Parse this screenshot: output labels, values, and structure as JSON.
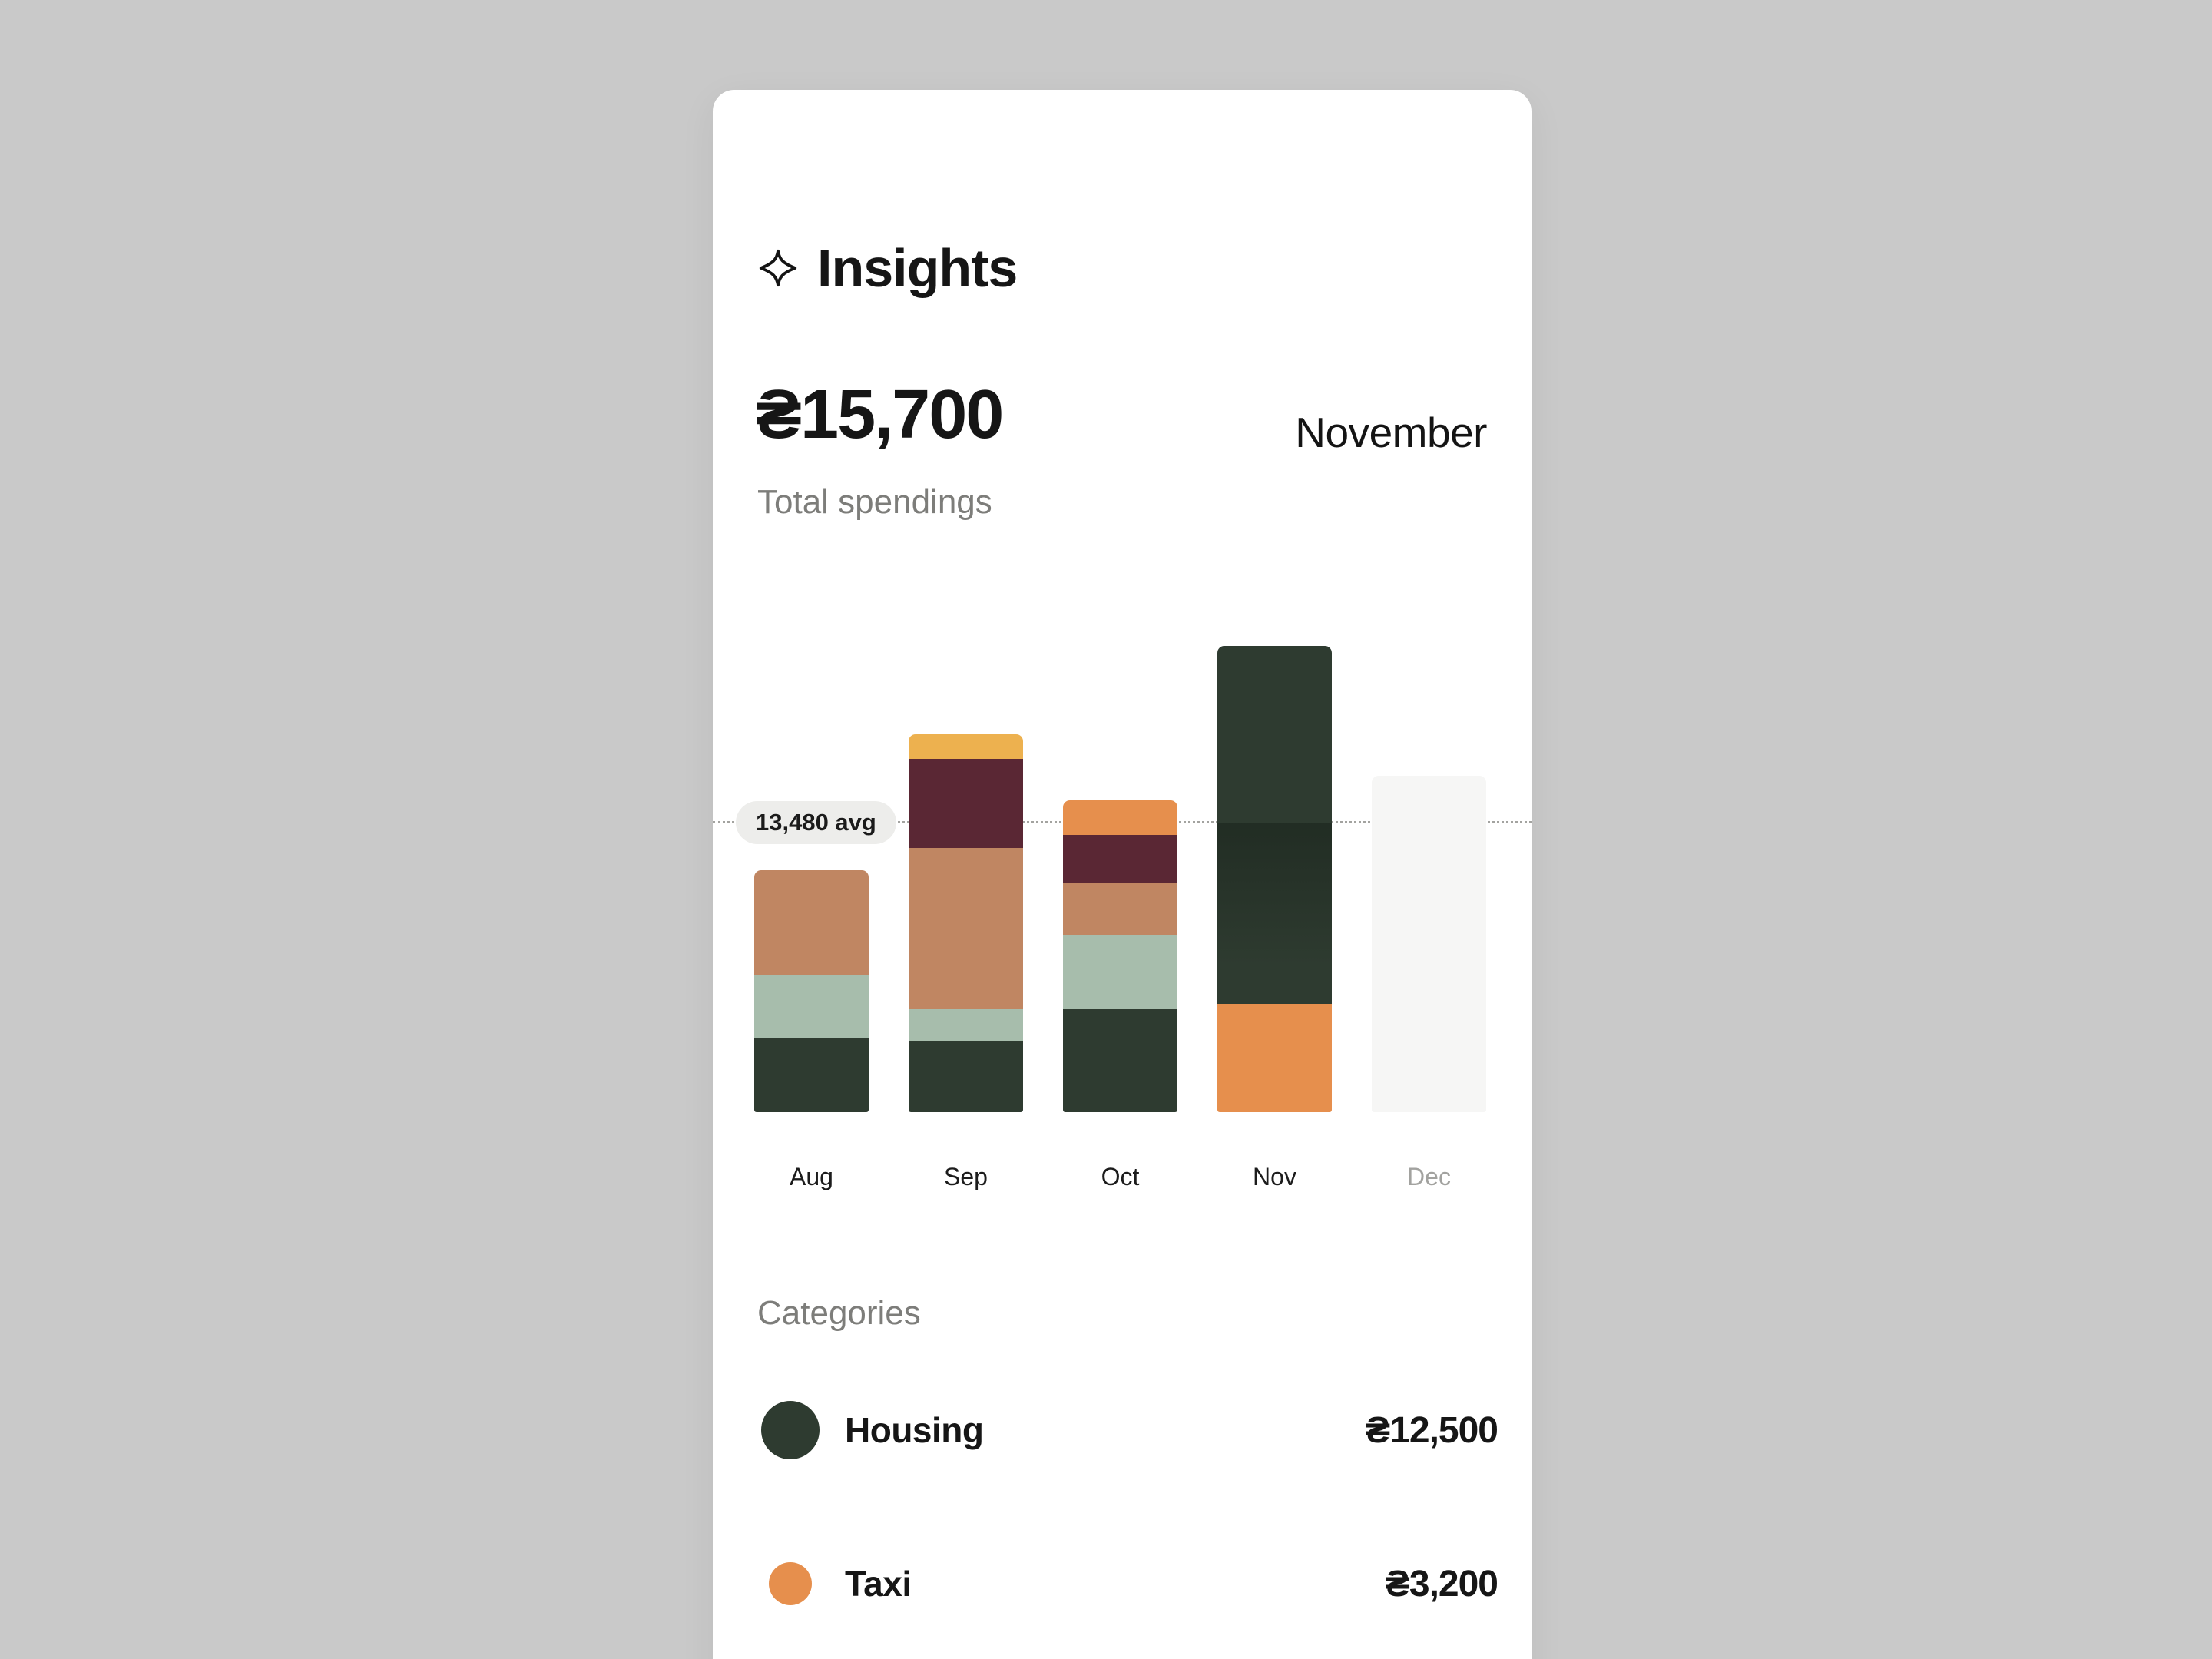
{
  "page": {
    "background": "#c9c9c9",
    "card_background": "#ffffff"
  },
  "header": {
    "title": "Insights",
    "icon": "sparkle-icon"
  },
  "summary": {
    "amount": "₴15,700",
    "label": "Total spendings",
    "period": "November"
  },
  "chart_data": {
    "type": "bar",
    "stacked": true,
    "categories": [
      "Aug",
      "Sep",
      "Oct",
      "Nov",
      "Dec"
    ],
    "unit": "relative-height",
    "avg": {
      "label": "13,480 avg",
      "value": 13480,
      "position": 202
    },
    "grid": "avg-dotted-line-only",
    "legend_position": "none",
    "colors": {
      "housing": "#2e3b30",
      "sage": "#a7bdac",
      "terracotta": "#c08662",
      "maroon": "#5a2734",
      "orange": "#e68f4d",
      "yellow": "#edb14f",
      "placeholder": "#f6f6f5"
    },
    "bars": [
      {
        "month": "Aug",
        "future": false,
        "highlight": false,
        "segments": [
          {
            "color": "housing",
            "value": 52
          },
          {
            "color": "sage",
            "value": 44
          },
          {
            "color": "terracotta",
            "value": 73
          }
        ]
      },
      {
        "month": "Sep",
        "future": false,
        "highlight": false,
        "segments": [
          {
            "color": "housing",
            "value": 50
          },
          {
            "color": "sage",
            "value": 22
          },
          {
            "color": "terracotta",
            "value": 113
          },
          {
            "color": "maroon",
            "value": 62
          },
          {
            "color": "yellow",
            "value": 17
          }
        ]
      },
      {
        "month": "Oct",
        "future": false,
        "highlight": false,
        "segments": [
          {
            "color": "housing",
            "value": 72
          },
          {
            "color": "sage",
            "value": 52
          },
          {
            "color": "terracotta",
            "value": 36
          },
          {
            "color": "maroon",
            "value": 34
          },
          {
            "color": "orange",
            "value": 24
          }
        ]
      },
      {
        "month": "Nov",
        "future": false,
        "highlight": true,
        "segments": [
          {
            "color": "orange",
            "value": 76
          },
          {
            "color": "housing",
            "value": 250
          }
        ]
      },
      {
        "month": "Dec",
        "future": true,
        "highlight": false,
        "segments": [
          {
            "color": "placeholder",
            "value": 235
          }
        ]
      }
    ]
  },
  "categories_section": {
    "title": "Categories",
    "items": [
      {
        "name": "Housing",
        "color": "#2e3b30",
        "amount": "₴12,500"
      },
      {
        "name": "Taxi",
        "color": "#e68f4d",
        "amount": "₴3,200"
      }
    ]
  }
}
